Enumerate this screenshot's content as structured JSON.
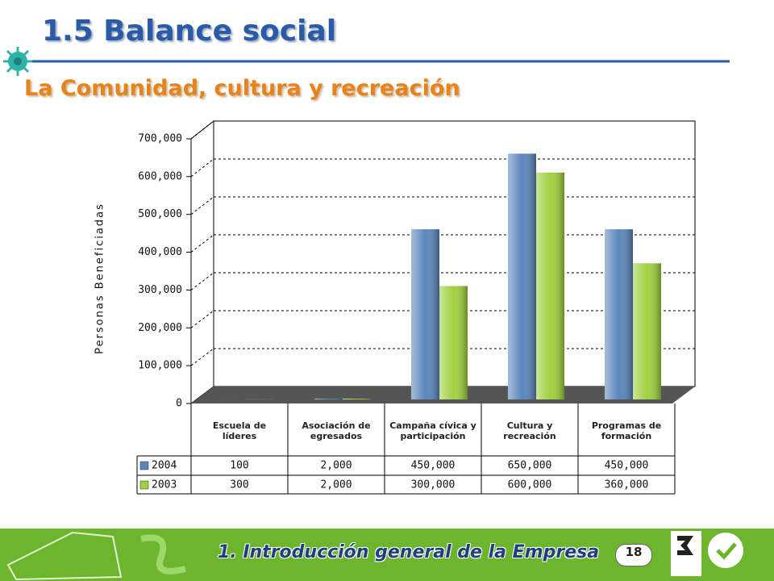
{
  "header": {
    "title": "1.5 Balance social",
    "subtitle": "La Comunidad, cultura y recreación"
  },
  "chart_data": {
    "type": "bar",
    "y_label": "Personas Beneficiadas",
    "categories": [
      "Escuela de líderes",
      "Asociación de egresados",
      "Campaña cívica y participación",
      "Cultura y recreación",
      "Programas de formación"
    ],
    "series": [
      {
        "name": "2004",
        "color": "#5b86bd",
        "values": [
          100,
          2000,
          450000,
          650000,
          450000
        ],
        "value_labels": [
          "100",
          "2,000",
          "450,000",
          "650,000",
          "450,000"
        ]
      },
      {
        "name": "2003",
        "color": "#9fd03e",
        "values": [
          300,
          2000,
          300000,
          600000,
          360000
        ],
        "value_labels": [
          "300",
          "2,000",
          "300,000",
          "600,000",
          "360,000"
        ]
      }
    ],
    "ylim": [
      0,
      700000
    ],
    "yticks": [
      0,
      {
        "value": 100000,
        "label": "100,000"
      },
      {
        "value": 200000,
        "label": "200,000"
      },
      {
        "value": 300000,
        "label": "300,000"
      },
      {
        "value": 400000,
        "label": "400,000"
      },
      {
        "value": 500000,
        "label": "500,000"
      },
      {
        "value": 600000,
        "label": "600,000"
      },
      {
        "value": 700000,
        "label": "700,000"
      }
    ],
    "grid": true
  },
  "footer": {
    "section": "1. Introducción general de la Empresa",
    "page": 18
  }
}
